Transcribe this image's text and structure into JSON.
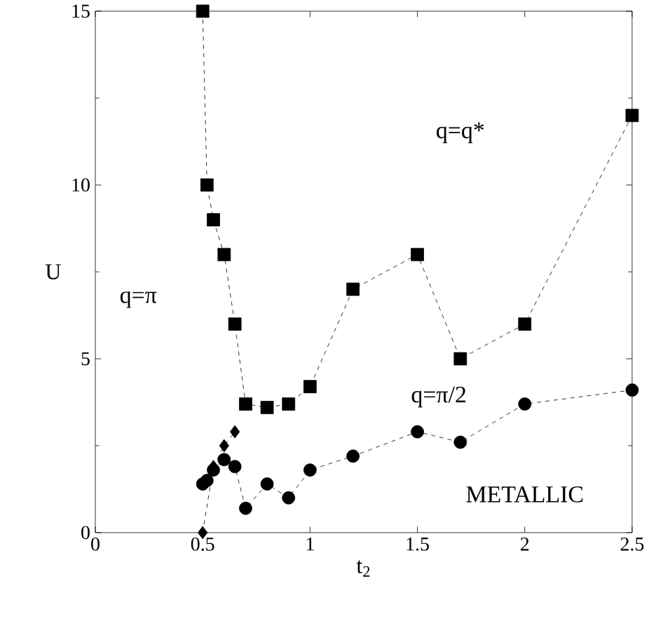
{
  "chart_data": {
    "type": "line",
    "xlabel": "t$_{2}$",
    "ylabel": "U",
    "xlim": [
      0,
      2.5
    ],
    "ylim": [
      0,
      15
    ],
    "xticks": [
      0,
      0.5,
      1,
      1.5,
      2,
      2.5
    ],
    "yticks": [
      0,
      5,
      10,
      15
    ],
    "line_style": "dashed",
    "grid": false,
    "series": [
      {
        "color": "#000000",
        "marker": "square",
        "x": [
          0.5,
          0.52,
          0.55,
          0.6,
          0.65,
          0.7,
          0.8,
          0.9,
          1.0,
          1.2,
          1.5,
          1.7,
          2.0,
          2.5
        ],
        "values": [
          15,
          10,
          9,
          8,
          6,
          3.7,
          3.6,
          3.7,
          4.2,
          7,
          8,
          5,
          6,
          12
        ]
      },
      {
        "color": "#000000",
        "marker": "circle",
        "x": [
          0.5,
          0.52,
          0.55,
          0.58,
          0.6,
          0.65,
          0.7,
          0.8,
          0.9,
          1.0,
          1.2,
          1.5,
          1.7,
          2.0,
          2.5
        ],
        "values": [
          1.4,
          1.5,
          1.8,
          null,
          2.1,
          1.9,
          0.7,
          1.4,
          1.0,
          1.8,
          2.2,
          2.9,
          2.6,
          3.7,
          4.1
        ]
      },
      {
        "color": "#000000",
        "marker": "diamond",
        "x": [
          0.5,
          0.52,
          0.55,
          0.6,
          0.65
        ],
        "values": [
          0,
          null,
          1.9,
          2.5,
          2.9
        ]
      }
    ],
    "annotations": [
      "q=q*",
      "q=π",
      "q=π/2",
      "METALLIC"
    ]
  }
}
